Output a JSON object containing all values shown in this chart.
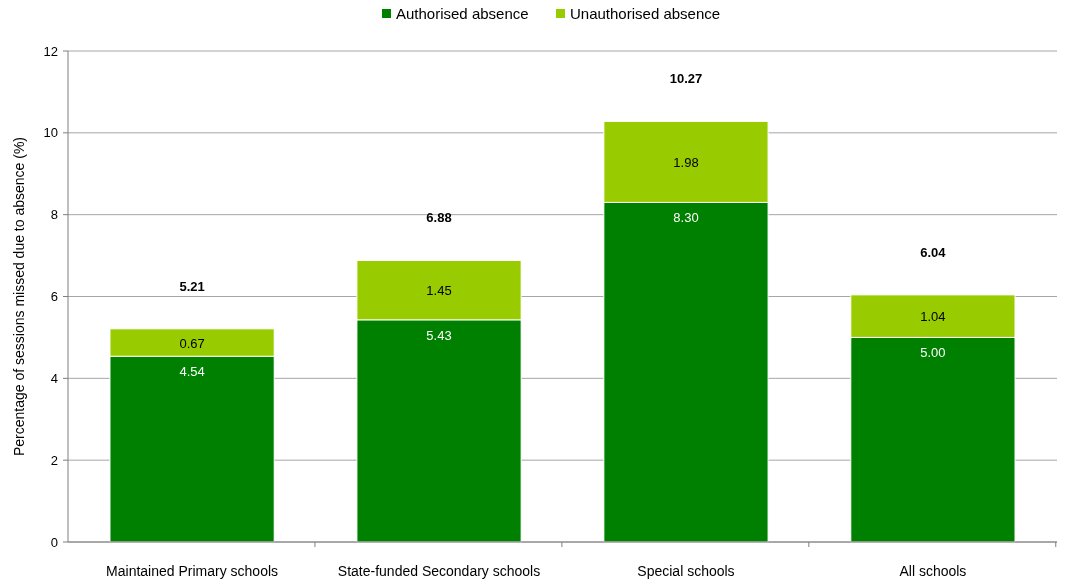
{
  "chart_data": {
    "type": "bar",
    "stacked": true,
    "ylabel": "Percentage of sessions missed due to absence (%)",
    "categories": [
      "Maintained Primary schools",
      "State-funded Secondary schools",
      "Special schools",
      "All schools"
    ],
    "series": [
      {
        "name": "Authorised absence",
        "color": "#008000",
        "values": [
          4.54,
          5.43,
          8.3,
          5.0
        ],
        "value_labels": [
          "4.54",
          "5.43",
          "8.30",
          "5.00"
        ]
      },
      {
        "name": "Unauthorised absence",
        "color": "#99cc00",
        "values": [
          0.67,
          1.45,
          1.98,
          1.04
        ],
        "value_labels": [
          "0.67",
          "1.45",
          "1.98",
          "1.04"
        ]
      }
    ],
    "totals": [
      "5.21",
      "6.88",
      "10.27",
      "6.04"
    ],
    "ylim": [
      0,
      12
    ],
    "yticks": [
      0,
      2,
      4,
      6,
      8,
      10,
      12
    ],
    "grid": "y",
    "legend": "top"
  }
}
